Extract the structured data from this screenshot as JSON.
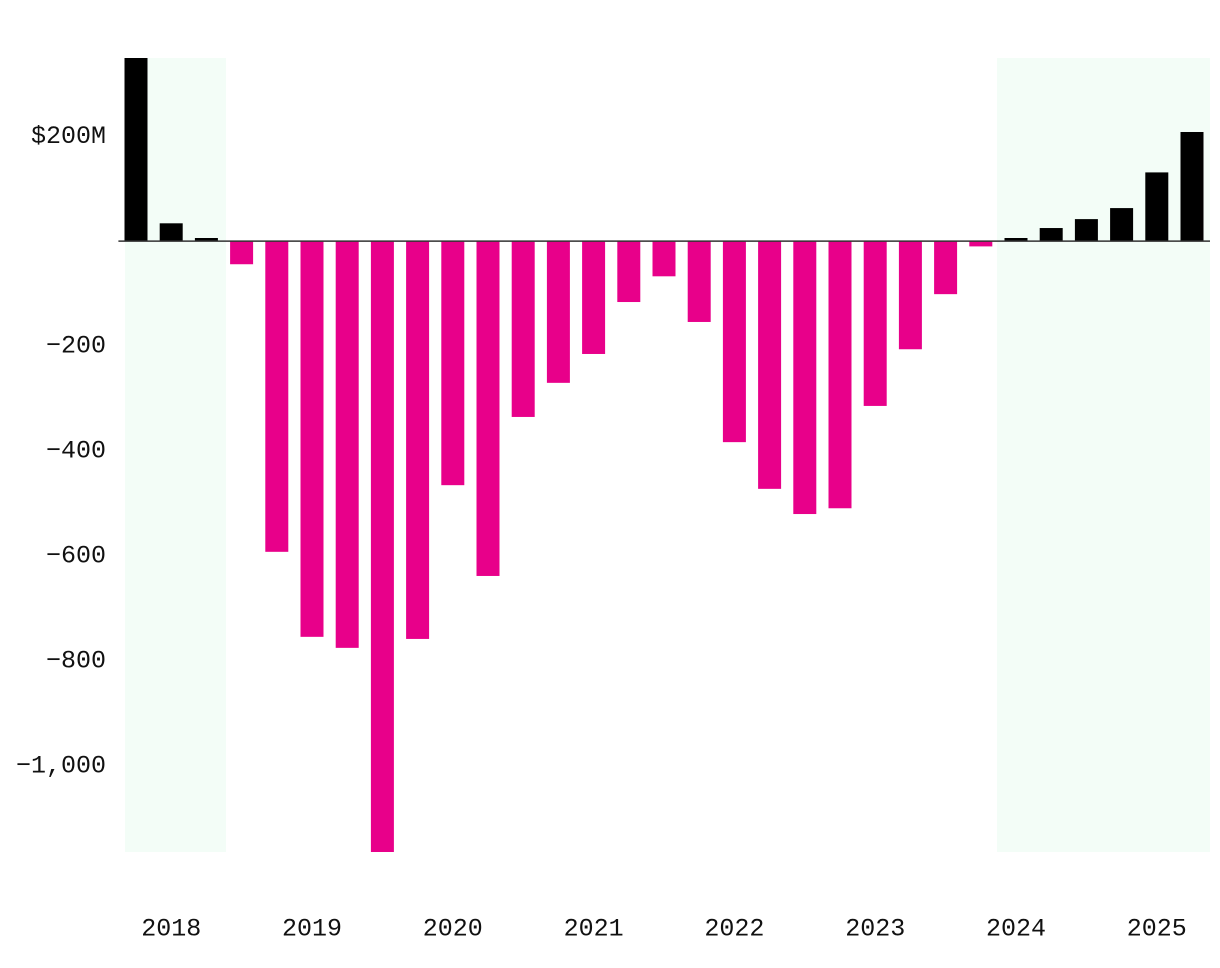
{
  "chart_data": {
    "type": "bar",
    "categories": [
      null,
      "2018",
      null,
      null,
      null,
      "2019",
      null,
      null,
      null,
      "2020",
      null,
      null,
      null,
      "2021",
      null,
      null,
      null,
      "2022",
      null,
      null,
      null,
      "2023",
      null,
      null,
      null,
      "2024",
      null,
      null,
      null,
      "2025",
      null
    ],
    "values": [
      349,
      34,
      6,
      -44,
      -592,
      -754,
      -775,
      -1164,
      -758,
      -465,
      -638,
      -335,
      -270,
      -215,
      -116,
      -67,
      -154,
      -383,
      -472,
      -520,
      -509,
      -314,
      -206,
      -101,
      -10,
      6,
      25,
      42,
      63,
      131,
      208
    ],
    "positive_color": "#000000",
    "negative_color": "#e8008a",
    "ylim": [
      -1164,
      349
    ],
    "yticks": [
      {
        "value": -1000,
        "label": "−1,000"
      },
      {
        "value": -800,
        "label": "−800"
      },
      {
        "value": -600,
        "label": "−600"
      },
      {
        "value": -400,
        "label": "−400"
      },
      {
        "value": -200,
        "label": "−200"
      },
      {
        "value": 200,
        "label": "$200M"
      }
    ],
    "grid": false
  }
}
